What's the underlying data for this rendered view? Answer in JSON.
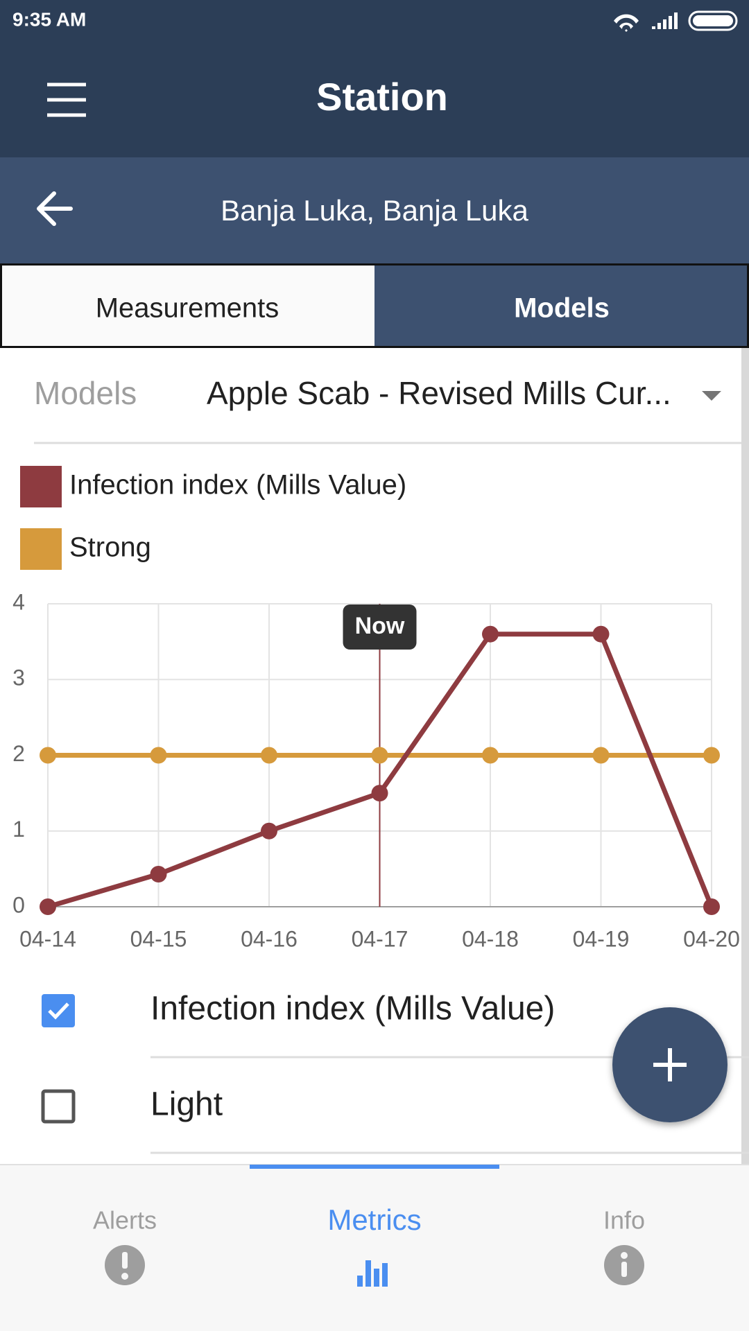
{
  "status_bar": {
    "time": "9:35 AM"
  },
  "app_bar": {
    "title": "Station"
  },
  "location_bar": {
    "title": "Banja Luka, Banja Luka"
  },
  "tabs": [
    {
      "label": "Measurements",
      "selected": false
    },
    {
      "label": "Models",
      "selected": true
    }
  ],
  "model_selector": {
    "label": "Models",
    "value": "Apple Scab - Revised Mills Cur..."
  },
  "chart_data": {
    "type": "line",
    "categories": [
      "04-14",
      "04-15",
      "04-16",
      "04-17",
      "04-18",
      "04-19",
      "04-20"
    ],
    "series": [
      {
        "name": "Infection index (Mills Value)",
        "color": "#8e3b40",
        "values": [
          0,
          0.43,
          1,
          1.5,
          3.6,
          3.6,
          0
        ]
      },
      {
        "name": "Strong",
        "color": "#d69a3c",
        "values": [
          2,
          2,
          2,
          2,
          2,
          2,
          2
        ]
      }
    ],
    "ylim": [
      0,
      4
    ],
    "yticks": [
      0,
      1,
      2,
      3,
      4
    ],
    "grid": true,
    "annotation": {
      "label": "Now",
      "category": "04-17"
    }
  },
  "checklist": [
    {
      "label": "Infection index (Mills Value)",
      "checked": true
    },
    {
      "label": "Light",
      "checked": false
    }
  ],
  "bottom_nav": [
    {
      "label": "Alerts",
      "selected": false
    },
    {
      "label": "Metrics",
      "selected": true
    },
    {
      "label": "Info",
      "selected": false
    }
  ]
}
